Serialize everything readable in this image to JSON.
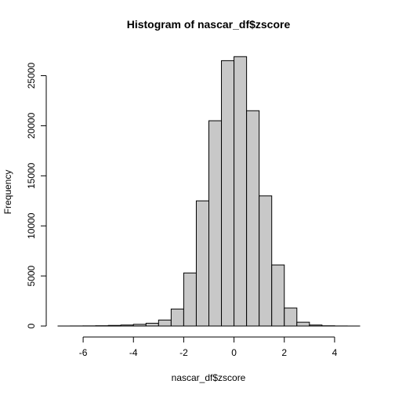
{
  "chart_data": {
    "type": "bar",
    "title": "Histogram of nascar_df$zscore",
    "xlabel": "nascar_df$zscore",
    "ylabel": "Frequency",
    "bin_edges": [
      -7,
      -6.5,
      -6,
      -5.5,
      -5,
      -4.5,
      -4,
      -3.5,
      -3,
      -2.5,
      -2,
      -1.5,
      -1,
      -0.5,
      0,
      0.5,
      1,
      1.5,
      2,
      2.5,
      3,
      3.5,
      4,
      4.5,
      5
    ],
    "values": [
      2,
      8,
      15,
      30,
      60,
      100,
      170,
      280,
      600,
      1700,
      5300,
      12500,
      20500,
      26500,
      26900,
      21500,
      13000,
      6100,
      1800,
      380,
      100,
      25,
      8,
      2
    ],
    "xlim": [
      -7,
      5
    ],
    "ylim": [
      0,
      27000
    ],
    "x_ticks": [
      -6,
      -4,
      -2,
      0,
      2,
      4
    ],
    "y_ticks": [
      0,
      5000,
      10000,
      15000,
      20000,
      25000
    ],
    "colors": {
      "bar_fill": "#C8C8C8",
      "bar_stroke": "#000000"
    }
  }
}
